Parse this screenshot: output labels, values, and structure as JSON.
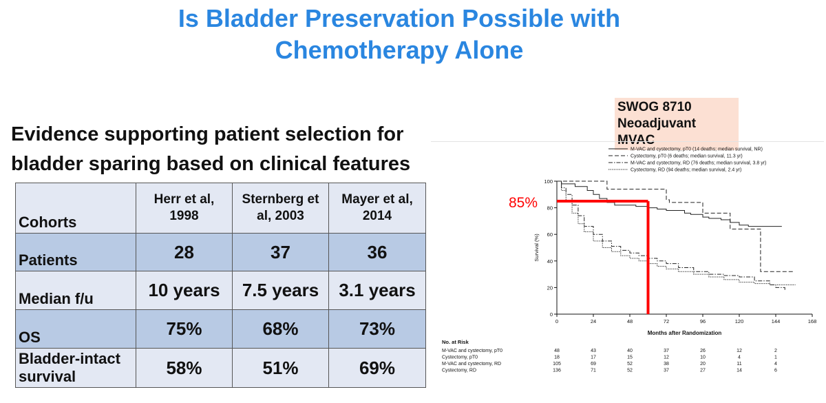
{
  "title": {
    "line1": "Is Bladder Preservation Possible with",
    "line2": "Chemotherapy Alone"
  },
  "subtitle": {
    "line1": "Evidence supporting patient selection for",
    "line2": "bladder sparing based on clinical features"
  },
  "table": {
    "header": [
      "Cohorts",
      "Herr et al, 1998",
      "Sternberg et al, 2003",
      "Mayer et al, 2014"
    ],
    "rows": [
      {
        "label": "Patients",
        "values": [
          "28",
          "37",
          "36"
        ]
      },
      {
        "label": "Median f/u",
        "values": [
          "10 years",
          "7.5 years",
          "3.1 years"
        ]
      },
      {
        "label": "OS",
        "values": [
          "75%",
          "68%",
          "73%"
        ]
      },
      {
        "label": "Bladder-intact survival",
        "values": [
          "58%",
          "51%",
          "69%"
        ]
      }
    ]
  },
  "colors": {
    "title": "#2a86e0",
    "table_light": "#e3e8f3",
    "table_dark": "#b8cae4",
    "label_bg": "#fce0d3",
    "highlight": "#ff0000"
  },
  "swog_label": {
    "line1": "SWOG 8710",
    "line2": "Neoadjuvant MVAC"
  },
  "chart_data": {
    "type": "line",
    "xlabel": "Months after Randomization",
    "ylabel": "Survival (%)",
    "xlim": [
      0,
      168
    ],
    "ylim": [
      0,
      100
    ],
    "xticks": [
      0,
      24,
      48,
      72,
      96,
      120,
      144,
      168
    ],
    "yticks": [
      0,
      20,
      40,
      60,
      80,
      100
    ],
    "grid": false,
    "legend_position": "top-right",
    "series": [
      {
        "name": "M-VAC and cystectomy, pT0 (14 deaths; median survival, NR)",
        "style": "solid",
        "x": [
          0,
          3,
          12,
          20,
          24,
          28,
          33,
          38,
          45,
          52,
          60,
          66,
          72,
          78,
          84,
          88,
          96,
          100,
          108,
          114,
          120,
          126,
          134,
          148
        ],
        "y": [
          100,
          98,
          96,
          93,
          90,
          87,
          84,
          82,
          82,
          81,
          80,
          79,
          78,
          78,
          76,
          75,
          73,
          72,
          71,
          69,
          67,
          66,
          66,
          66
        ]
      },
      {
        "name": "Cystectomy, pT0 (6 deaths; median survival, 11.3 yr)",
        "style": "dashed",
        "x": [
          0,
          8,
          30,
          33,
          44,
          72,
          74,
          84,
          96,
          112,
          114,
          132,
          134,
          156
        ],
        "y": [
          100,
          100,
          100,
          94,
          94,
          86,
          84,
          84,
          76,
          76,
          64,
          64,
          32,
          32
        ]
      },
      {
        "name": "M-VAC and cystectomy, RD (76 deaths; median survival, 3.8 yr)",
        "style": "dashdot",
        "x": [
          0,
          3,
          6,
          10,
          14,
          18,
          24,
          30,
          36,
          42,
          48,
          54,
          60,
          66,
          72,
          80,
          90,
          100,
          110,
          120,
          130,
          140,
          144,
          150
        ],
        "y": [
          100,
          95,
          90,
          82,
          74,
          66,
          60,
          55,
          51,
          48,
          46,
          44,
          42,
          40,
          38,
          35,
          32,
          30,
          29,
          28,
          25,
          22,
          20,
          18
        ]
      },
      {
        "name": "Cystectomy, RD (94 deaths; median survival, 2.4 yr)",
        "style": "dotted",
        "x": [
          0,
          3,
          6,
          10,
          14,
          18,
          24,
          30,
          36,
          42,
          48,
          54,
          60,
          66,
          72,
          80,
          90,
          100,
          110,
          120,
          130,
          140,
          150,
          157
        ],
        "y": [
          100,
          93,
          85,
          76,
          68,
          62,
          55,
          50,
          47,
          44,
          42,
          40,
          38,
          36,
          34,
          32,
          30,
          28,
          26,
          24,
          23,
          22,
          22,
          22
        ]
      }
    ],
    "annotations": [
      {
        "text": "85%",
        "y": 85,
        "x": 60
      }
    ],
    "at_risk": {
      "title": "No. at Risk",
      "rows": [
        {
          "label": "M-VAC and cystectomy, pT0",
          "values": [
            "48",
            "43",
            "40",
            "37",
            "26",
            "12",
            "2"
          ]
        },
        {
          "label": "Cystectomy, pT0",
          "values": [
            "18",
            "17",
            "15",
            "12",
            "10",
            "4",
            "1"
          ]
        },
        {
          "label": "M-VAC and cystectomy, RD",
          "values": [
            "105",
            "69",
            "52",
            "38",
            "20",
            "11",
            "4"
          ]
        },
        {
          "label": "Cystectomy, RD",
          "values": [
            "136",
            "71",
            "52",
            "37",
            "27",
            "14",
            "6"
          ]
        }
      ]
    }
  }
}
